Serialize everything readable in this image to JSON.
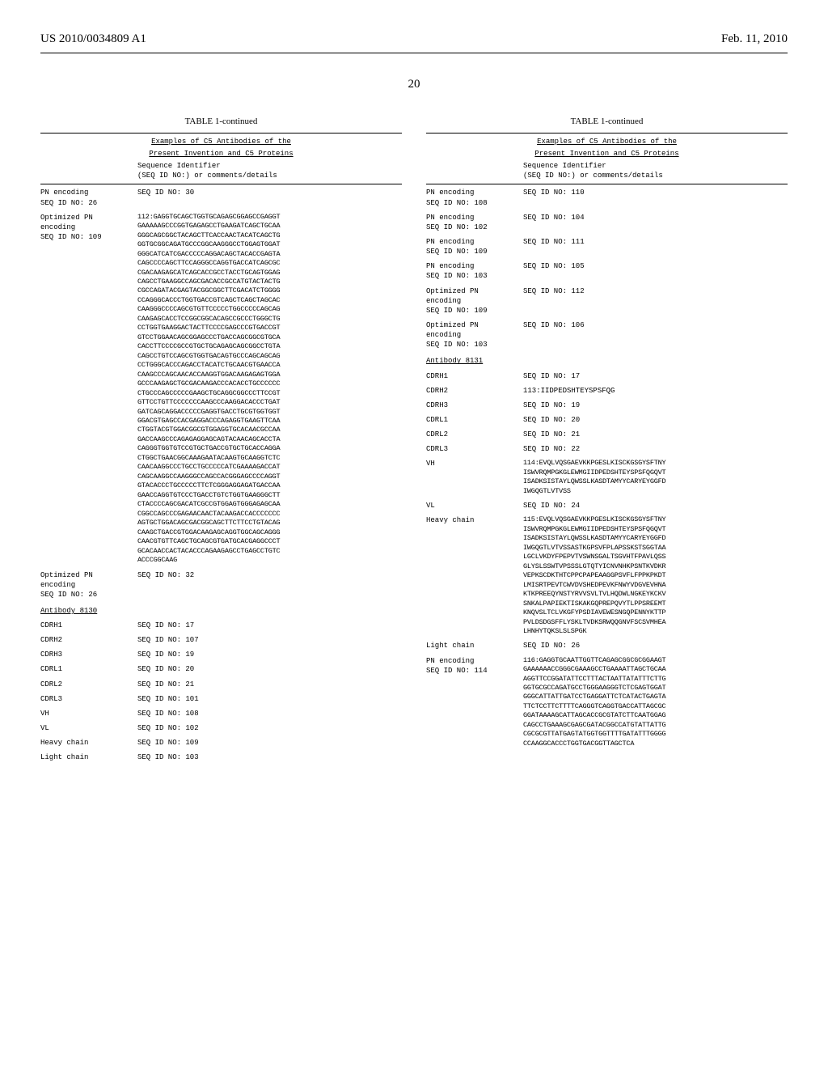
{
  "header": {
    "left": "US 2010/0034809 A1",
    "right": "Feb. 11, 2010"
  },
  "pageNumber": "20",
  "table": {
    "title": "TABLE 1-continued",
    "subtitle1": "Examples of C5 Antibodies of the",
    "subtitle2": "Present Invention and C5 Proteins",
    "colHeader": "Sequence Identifier\n(SEQ ID NO:) or comments/details"
  },
  "leftCol": {
    "entries": [
      {
        "label": "PN encoding\nSEQ ID NO: 26",
        "value": "SEQ ID NO: 30"
      }
    ],
    "seqBlock1": {
      "label": "Optimized PN\nencoding\nSEQ ID NO: 109",
      "prefix": "112:",
      "lines": [
        "GAGGTGCAGCTGGTGCAGAGCGGAGCCGAGGT",
        "GAAAAAGCCCGGTGAGAGCCTGAAGATCAGCTGCAA",
        "GGGCAGCGGCTACAGCTTCACCAACTACATCAGCTG",
        "GGTGCGGCAGATGCCCGGCAAGGGCCTGGAGTGGAT",
        "GGGCATCATCGACCCCCAGGACAGCTACACCGAGTA",
        "CAGCCCCAGCTTCCAGGGCCAGGTGACCATCAGCGC",
        "CGACAAGAGCATCAGCACCGCCTACCTGCAGTGGAG",
        "CAGCCTGAAGGCCAGCGACACCGCCATGTACTACTG",
        "CGCCAGATACGAGTACGGCGGCTTCGACATCTGGGG",
        "CCAGGGCACCCTGGTGACCGTCAGCTCAGCTAGCAC",
        "CAAGGGCCCCAGCGTGTTCCCCCTGGCCCCCAGCAG",
        "CAAGAGCACCTCCGGCGGCACAGCCGCCCTGGGCTG",
        "CCTGGTGAAGGACTACTTCCCCGAGCCCGTGACCGT",
        "GTCCTGGAACAGCGGAGCCCTGACCAGCGGCGTGCA",
        "CACCTTCCCCGCCGTGCTGCAGAGCAGCGGCCTGTA",
        "CAGCCTGTCCAGCGTGGTGACAGTGCCCAGCAGCAG",
        "CCTGGGCACCCAGACCTACATCTGCAACGTGAACCA",
        "CAAGCCCAGCAACACCAAGGTGGACAAGAGAGTGGA",
        "GCCCAAGAGCTGCGACAAGACCCACACCTGCCCCCC",
        "CTGCCCAGCCCCCGAAGCTGCAGGCGGCCCTTCCGT",
        "GTTCCTGTTCCCCCCCAAGCCCAAGGACACCCTGAT",
        "GATCAGCAGGACCCCCGAGGTGACCTGCGTGGTGGT",
        "GGACGTGAGCCACGAGGACCCAGAGGTGAAGTTCAA",
        "CTGGTACGTGGACGGCGTGGAGGTGCACAACGCCAA",
        "GACCAAGCCCAGAGAGGAGCAGTACAACAGCACCTA",
        "CAGGGTGGTGTCCGTGCTGACCGTGCTGCACCAGGA",
        "CTGGCTGAACGGCAAAGAATACAAGTGCAAGGTCTC",
        "CAACAAGGCCCTGCCTGCCCCCATCGAAAAGACCAT",
        "CAGCAAGGCCAAGGGCCAGCCACGGGAGCCCCAGGT",
        "GTACACCCTGCCCCCTTCTCGGGAGGAGATGACCAA",
        "GAACCAGGTGTCCCTGACCTGTCTGGTGAAGGGCTT",
        "CTACCCCAGCGACATCGCCGTGGAGTGGGAGAGCAA",
        "CGGCCAGCCCGAGAACAACTACAAGACCACCCCCCC",
        "AGTGCTGGACAGCGACGGCAGCTTCTTCCTGTACAG",
        "CAAGCTGACCGTGGACAAGAGCAGGTGGCAGCAGGG",
        "CAACGTGTTCAGCTGCAGCGTGATGCACGAGGCCCT",
        "GCACAACCACTACACCCAGAAGAGCCTGAGCCTGTC",
        "ACCCGGCAAG"
      ]
    },
    "entry2": {
      "label": "Optimized PN\nencoding\nSEQ ID NO: 26",
      "value": "SEQ ID NO: 32"
    },
    "antibody8130": "Antibody 8130",
    "simpleEntries": [
      {
        "label": "CDRH1",
        "value": "SEQ ID NO: 17"
      },
      {
        "label": "CDRH2",
        "value": "SEQ ID NO: 107"
      },
      {
        "label": "CDRH3",
        "value": "SEQ ID NO: 19"
      },
      {
        "label": "CDRL1",
        "value": "SEQ ID NO: 20"
      },
      {
        "label": "CDRL2",
        "value": "SEQ ID NO: 21"
      },
      {
        "label": "CDRL3",
        "value": "SEQ ID NO: 101"
      },
      {
        "label": "VH",
        "value": "SEQ ID NO: 108"
      },
      {
        "label": "VL",
        "value": "SEQ ID NO: 102"
      },
      {
        "label": "Heavy chain",
        "value": "SEQ ID NO: 109"
      },
      {
        "label": "Light chain",
        "value": "SEQ ID NO: 103"
      }
    ]
  },
  "rightCol": {
    "entries1": [
      {
        "label": "PN encoding\nSEQ ID NO: 108",
        "value": "SEQ ID NO: 110"
      },
      {
        "label": "PN encoding\nSEQ ID NO: 102",
        "value": "SEQ ID NO: 104"
      },
      {
        "label": "PN encoding\nSEQ ID NO: 109",
        "value": "SEQ ID NO: 111"
      },
      {
        "label": "PN encoding\nSEQ ID NO: 103",
        "value": "SEQ ID NO: 105"
      },
      {
        "label": "Optimized PN\nencoding\nSEQ ID NO: 109",
        "value": "SEQ ID NO: 112"
      },
      {
        "label": "Optimized PN\nencoding\nSEQ ID NO: 103",
        "value": "SEQ ID NO: 106"
      }
    ],
    "antibody8131": "Antibody 8131",
    "entries2": [
      {
        "label": "CDRH1",
        "value": "SEQ ID NO: 17"
      },
      {
        "label": "CDRH2",
        "value": "113:IIDPEDSHTEYSPSFQG"
      },
      {
        "label": "CDRH3",
        "value": "SEQ ID NO: 19"
      },
      {
        "label": "CDRL1",
        "value": "SEQ ID NO: 20"
      },
      {
        "label": "CDRL2",
        "value": "SEQ ID NO: 21"
      },
      {
        "label": "CDRL3",
        "value": "SEQ ID NO: 22"
      }
    ],
    "vhBlock": {
      "label": "VH",
      "prefix": "114:",
      "lines": [
        "EVQLVQSGAEVKKPGESLKISCKGSGYSFTNY",
        "ISWVRQMPGKGLEWMGIIDPEDSHTEYSPSFQGQVT",
        "ISADKSISTAYLQWSSLKASDTAMYYCARYEYGGFD",
        "IWGQGTLVTVSS"
      ]
    },
    "vlEntry": {
      "label": "VL",
      "value": "SEQ ID NO: 24"
    },
    "heavyChainBlock": {
      "label": "Heavy chain",
      "prefix": "115:",
      "lines": [
        "EVQLVQSGAEVKKPGESLKISCKGSGYSFTNY",
        "ISWVRQMPGKGLEWMGIIDPEDSHTEYSPSFQGQVT",
        "ISADKSISTAYLQWSSLKASDTAMYYCARYEYGGFD",
        "IWGQGTLVTVSSASTKGPSVFPLAPSSKSTSGGTAA",
        "LGCLVKDYFPEPVTVSWNSGALTSGVHTFPAVLQSS",
        "GLYSLSSWTVPSSSLGTQTYICNVNHKPSNTKVDKR",
        "VEPKSCDKTHTCPPCPAPEAAGGPSVFLFPPKPKDT",
        "LMISRTPEVTCWVDVSHEDPEVKFNWYVDGVEVHNA",
        "KTKPREEQYNSTYRVVSVLTVLHQDWLNGKEYKCKV",
        "SNKALPAPIEKTISKAKGQPREPQVYTLPPSREEMT",
        "KNQVSLTCLVKGFYPSDIAVEWESNGQPENNYKTTP",
        "PVLDSDGSFFLYSKLTVDKSRWQQGNVFSCSVMHEA",
        "LHNHYTQKSLSLSPGK"
      ]
    },
    "lightChainEntry": {
      "label": "Light chain",
      "value": "SEQ ID NO: 26"
    },
    "pnEncodingBlock": {
      "label": "PN encoding\nSEQ ID NO: 114",
      "prefix": "116:",
      "lines": [
        "GAGGTGCAATTGGTTCAGAGCGGCGCGGAAGT",
        "GAAAAAACCGGGCGAAAGCCTGAAAATTAGCTGCAA",
        "AGGTTCCGGATATTCCTTTACTAATTATATTTCTTG",
        "GGTGCGCCAGATGCCTGGGAAGGGTCTCGAGTGGAT",
        "GGGCATTATTGATCCTGAGGATTCTCATACTGAGTA",
        "TTCTCCTTCTTTTCAGGGTCAGGTGACCATTAGCGC",
        "GGATAAAAGCATTAGCACCGCGTATCTTCAATGGAG",
        "CAGCCTGAAAGCGAGCGATACGGCCATGTATTATTG",
        "CGCGCGTTATGAGTATGGTGGTTTTGATATTTGGGG",
        "CCAAGGCACCCTGGTGACGGTTAGCTCA"
      ]
    }
  }
}
